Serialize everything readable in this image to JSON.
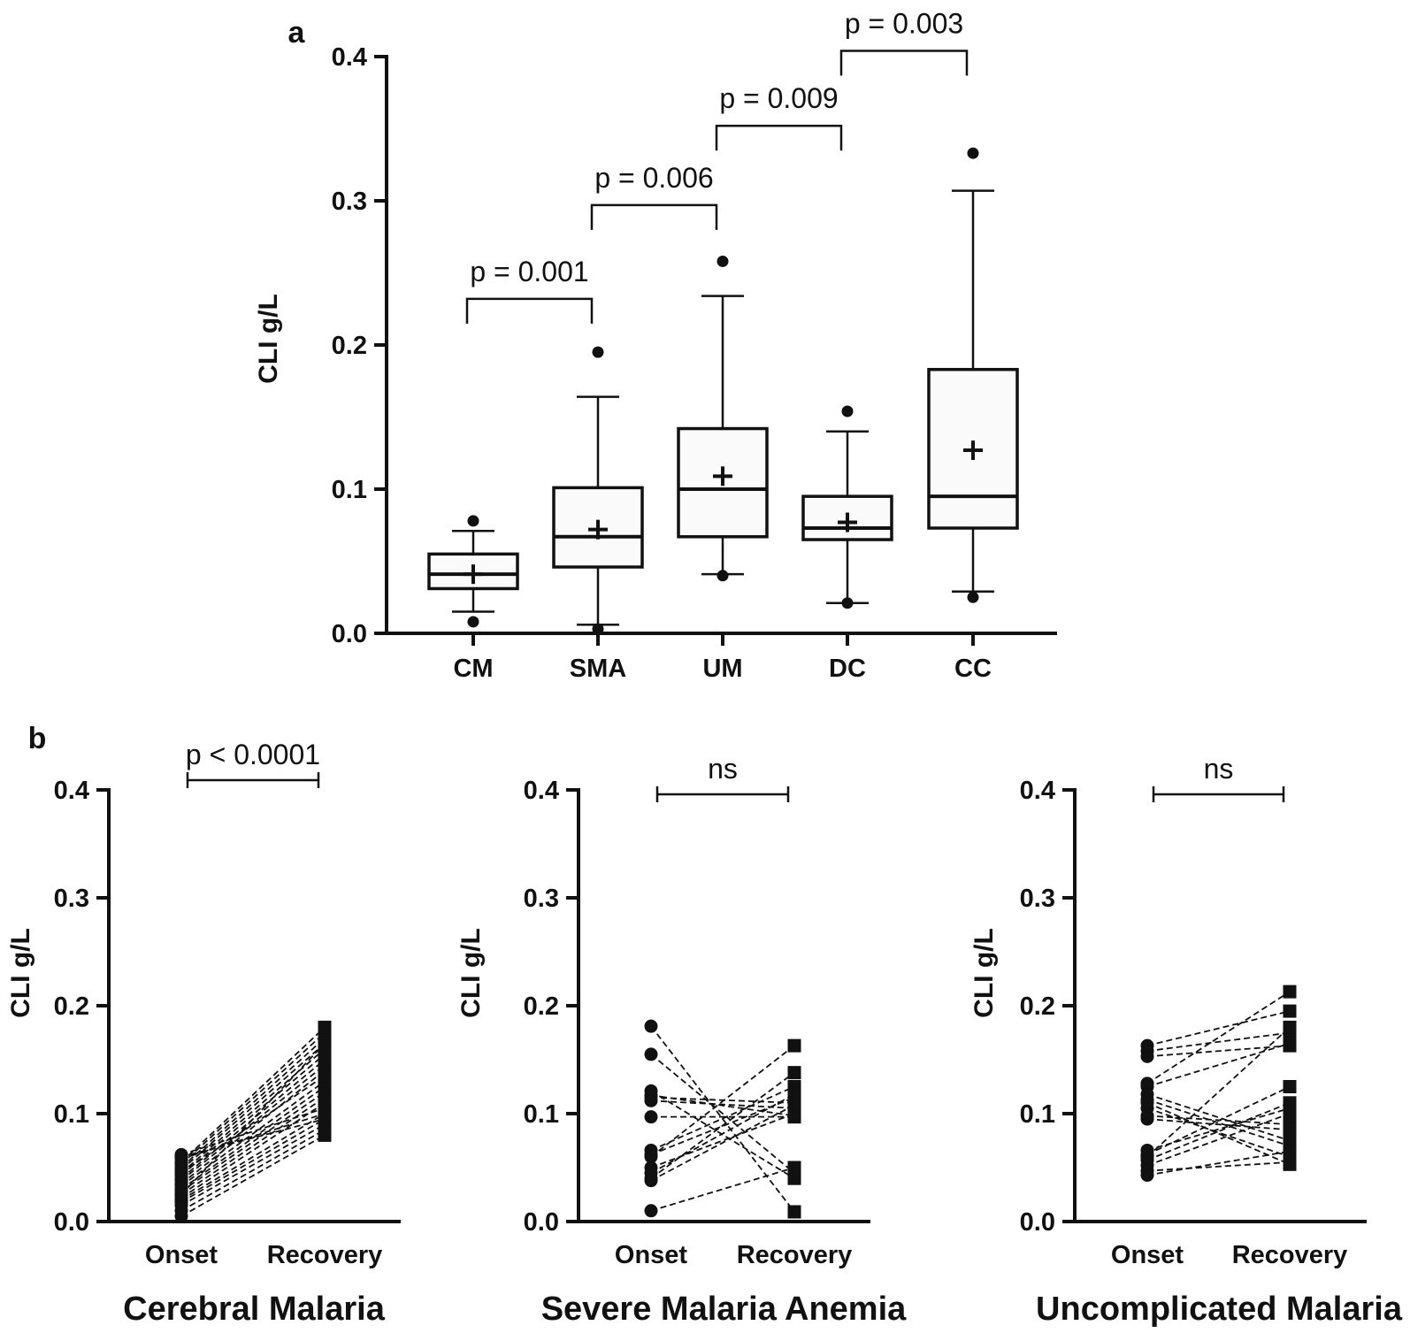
{
  "chart_data": [
    {
      "panel": "a",
      "type": "box",
      "title": "",
      "xlabel": "",
      "ylabel": "CLI g/L",
      "ylim": [
        0,
        0.4
      ],
      "yticks": [
        "0.0",
        "0.1",
        "0.2",
        "0.3",
        "0.4"
      ],
      "categories": [
        "CM",
        "SMA",
        "UM",
        "DC",
        "CC"
      ],
      "boxes": [
        {
          "q1": 0.031,
          "median": 0.041,
          "q3": 0.055,
          "mean": 0.041,
          "whisker_low": 0.015,
          "whisker_high": 0.071,
          "outliers": [
            0.078,
            0.008
          ]
        },
        {
          "q1": 0.046,
          "median": 0.067,
          "q3": 0.101,
          "mean": 0.072,
          "whisker_low": 0.006,
          "whisker_high": 0.164,
          "outliers": [
            0.195,
            0.003
          ]
        },
        {
          "q1": 0.067,
          "median": 0.1,
          "q3": 0.142,
          "mean": 0.109,
          "whisker_low": 0.041,
          "whisker_high": 0.234,
          "outliers": [
            0.258,
            0.04
          ]
        },
        {
          "q1": 0.065,
          "median": 0.073,
          "q3": 0.095,
          "mean": 0.077,
          "whisker_low": 0.021,
          "whisker_high": 0.14,
          "outliers": [
            0.154,
            0.021
          ]
        },
        {
          "q1": 0.073,
          "median": 0.095,
          "q3": 0.183,
          "mean": 0.127,
          "whisker_low": 0.029,
          "whisker_high": 0.307,
          "outliers": [
            0.333,
            0.025
          ]
        }
      ],
      "comparisons": [
        {
          "from": "CM",
          "to": "SMA",
          "label": "p = 0.001",
          "level": 0.232
        },
        {
          "from": "SMA",
          "to": "UM",
          "label": "p = 0.006",
          "level": 0.297
        },
        {
          "from": "UM",
          "to": "DC",
          "label": "p = 0.009",
          "level": 0.352
        },
        {
          "from": "DC",
          "to": "CC",
          "label": "p = 0.003",
          "level": 0.404
        }
      ]
    },
    {
      "panel": "b",
      "type": "line",
      "title": "Cerebral Malaria",
      "ylabel": "CLI g/L",
      "ylim": [
        0,
        0.4
      ],
      "yticks": [
        "0.0",
        "0.1",
        "0.2",
        "0.3",
        "0.4"
      ],
      "categories": [
        "Onset",
        "Recovery"
      ],
      "comparison": {
        "label": "p < 0.0001"
      },
      "pairs": [
        [
          0.005,
          0.08
        ],
        [
          0.01,
          0.085
        ],
        [
          0.015,
          0.09
        ],
        [
          0.018,
          0.095
        ],
        [
          0.02,
          0.1
        ],
        [
          0.022,
          0.11
        ],
        [
          0.025,
          0.115
        ],
        [
          0.028,
          0.12
        ],
        [
          0.03,
          0.125
        ],
        [
          0.033,
          0.13
        ],
        [
          0.035,
          0.14
        ],
        [
          0.038,
          0.145
        ],
        [
          0.04,
          0.15
        ],
        [
          0.043,
          0.155
        ],
        [
          0.045,
          0.16
        ],
        [
          0.048,
          0.165
        ],
        [
          0.05,
          0.17
        ],
        [
          0.053,
          0.175
        ],
        [
          0.055,
          0.18
        ],
        [
          0.058,
          0.1
        ],
        [
          0.06,
          0.095
        ],
        [
          0.062,
          0.105
        ],
        [
          0.045,
          0.135
        ],
        [
          0.025,
          0.165
        ]
      ]
    },
    {
      "panel": "b",
      "type": "line",
      "title": "Severe Malaria Anemia",
      "ylabel": "CLI g/L",
      "ylim": [
        0,
        0.4
      ],
      "yticks": [
        "0.0",
        "0.1",
        "0.2",
        "0.3",
        "0.4"
      ],
      "categories": [
        "Onset",
        "Recovery"
      ],
      "comparison": {
        "label": "ns"
      },
      "pairs": [
        [
          0.181,
          0.009
        ],
        [
          0.155,
          0.045
        ],
        [
          0.121,
          0.04
        ],
        [
          0.117,
          0.098
        ],
        [
          0.115,
          0.11
        ],
        [
          0.112,
          0.105
        ],
        [
          0.097,
          0.097
        ],
        [
          0.066,
          0.125
        ],
        [
          0.062,
          0.115
        ],
        [
          0.05,
          0.1
        ],
        [
          0.045,
          0.118
        ],
        [
          0.04,
          0.138
        ],
        [
          0.038,
          0.108
        ],
        [
          0.01,
          0.05
        ],
        [
          0.06,
          0.163
        ]
      ]
    },
    {
      "panel": "b",
      "type": "line",
      "title": "Uncomplicated Malaria",
      "ylabel": "CLI g/L",
      "ylim": [
        0,
        0.4
      ],
      "yticks": [
        "0.0",
        "0.1",
        "0.2",
        "0.3",
        "0.4"
      ],
      "categories": [
        "Onset",
        "Recovery"
      ],
      "comparison": {
        "label": "ns"
      },
      "pairs": [
        [
          0.163,
          0.195
        ],
        [
          0.158,
          0.175
        ],
        [
          0.153,
          0.163
        ],
        [
          0.128,
          0.213
        ],
        [
          0.125,
          0.165
        ],
        [
          0.118,
          0.075
        ],
        [
          0.113,
          0.07
        ],
        [
          0.105,
          0.06
        ],
        [
          0.098,
          0.09
        ],
        [
          0.095,
          0.085
        ],
        [
          0.066,
          0.105
        ],
        [
          0.062,
          0.125
        ],
        [
          0.057,
          0.11
        ],
        [
          0.052,
          0.1
        ],
        [
          0.047,
          0.055
        ],
        [
          0.043,
          0.065
        ],
        [
          0.06,
          0.18
        ],
        [
          0.11,
          0.053
        ]
      ]
    }
  ]
}
